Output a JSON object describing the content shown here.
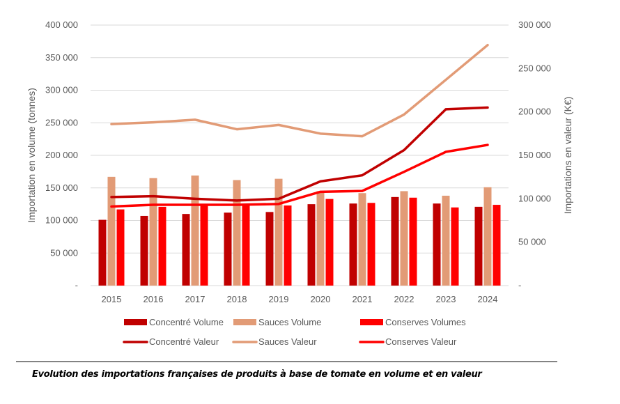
{
  "caption": "Evolution des importations françaises de produits à base de tomate en volume et en valeur",
  "chart_data": {
    "type": "bar+line",
    "title": "",
    "categories": [
      "2015",
      "2016",
      "2017",
      "2018",
      "2019",
      "2020",
      "2021",
      "2022",
      "2023",
      "2024"
    ],
    "y_left": {
      "label": "Importation en volume (tonnes)",
      "range": [
        0,
        400000
      ],
      "ticks": [
        0,
        50000,
        100000,
        150000,
        200000,
        250000,
        300000,
        350000,
        400000
      ],
      "tick_labels": [
        "-",
        "50 000",
        "100 000",
        "150 000",
        "200 000",
        "250 000",
        "300 000",
        "350 000",
        "400 000"
      ]
    },
    "y_right": {
      "label": "Importations en valeur (K€)",
      "range": [
        0,
        300000
      ],
      "ticks": [
        0,
        50000,
        100000,
        150000,
        200000,
        250000,
        300000
      ],
      "tick_labels": [
        "-",
        "50 000",
        "100 000",
        "150 000",
        "200 000",
        "250 000",
        "300 000"
      ]
    },
    "grid": true,
    "legend_position": "bottom",
    "bar_series": [
      {
        "name": "Concentré Volume",
        "color": "#C00000",
        "axis": "left",
        "values": [
          101000,
          107000,
          110000,
          112000,
          113000,
          125000,
          126000,
          136000,
          126000,
          121000
        ]
      },
      {
        "name": "Sauces Volume",
        "color": "#E29B76",
        "axis": "left",
        "values": [
          167000,
          165000,
          169000,
          162000,
          164000,
          145000,
          142000,
          145000,
          138000,
          151000
        ]
      },
      {
        "name": "Conserves Volumes",
        "color": "#FF0000",
        "axis": "left",
        "values": [
          117000,
          121000,
          124000,
          123000,
          123000,
          133000,
          127000,
          135000,
          120000,
          124000
        ]
      }
    ],
    "line_series": [
      {
        "name": "Concentré Valeur",
        "color": "#C00000",
        "axis": "right",
        "values": [
          102000,
          103000,
          100000,
          98000,
          100000,
          120000,
          127000,
          156000,
          203000,
          205000
        ]
      },
      {
        "name": "Sauces Valeur",
        "color": "#E29B76",
        "axis": "right",
        "values": [
          186000,
          188000,
          191000,
          180000,
          185000,
          175000,
          172000,
          197000,
          237000,
          277000
        ]
      },
      {
        "name": "Conserves Valeur",
        "color": "#FF0000",
        "axis": "right",
        "values": [
          91000,
          93000,
          93000,
          93000,
          94000,
          108000,
          109000,
          131000,
          154000,
          162000
        ]
      }
    ]
  }
}
